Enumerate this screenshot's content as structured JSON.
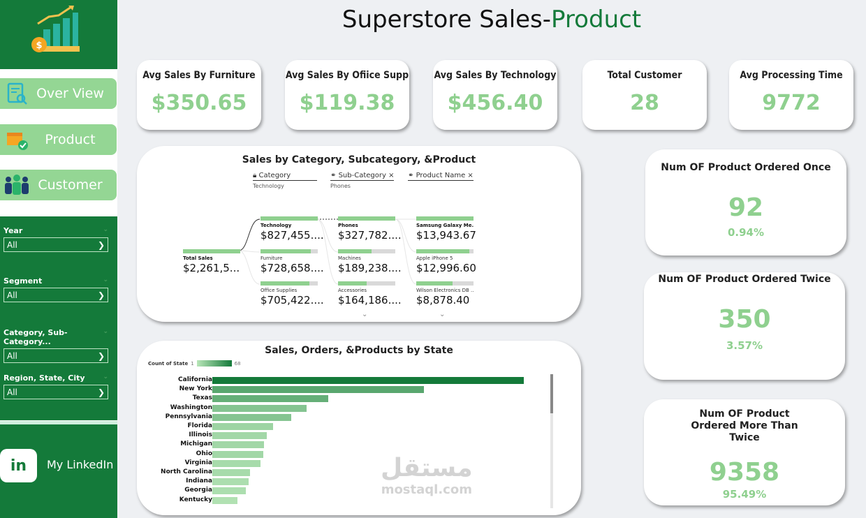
{
  "title": {
    "main": "Superstore Sales-",
    "accent": "Product"
  },
  "nav": [
    {
      "label": "Over View",
      "icon": "report-search-icon"
    },
    {
      "label": "Product",
      "icon": "product-box-icon"
    },
    {
      "label": "Customer",
      "icon": "customers-icon"
    }
  ],
  "filters": [
    {
      "label": "Year",
      "value": "All"
    },
    {
      "label": "Segment",
      "value": "All"
    },
    {
      "label": "Category, Sub-Category...",
      "value": "All"
    },
    {
      "label": "Region, State, City",
      "value": "All"
    }
  ],
  "linkedin": {
    "badge": "in",
    "label": "My LinkedIn"
  },
  "kpis": [
    {
      "title": "Avg Sales By Furniture",
      "value": "$350.65"
    },
    {
      "title": "Avg Sales By Ofiice Supp",
      "value": "$119.38"
    },
    {
      "title": "Avg Sales By Technology",
      "value": "$456.40"
    },
    {
      "title": "Total Customer",
      "value": "28"
    },
    {
      "title": "Avg Processing Time",
      "value": "9772"
    }
  ],
  "tree": {
    "title": "Sales by Category, Subcategory, &Product",
    "headers": [
      {
        "name": "Category",
        "selected": "Technology"
      },
      {
        "name": "Sub-Category",
        "selected": "Phones"
      },
      {
        "name": "Product Name",
        "selected": ""
      }
    ],
    "root": {
      "label": "Total Sales",
      "value": "$2,261,5...",
      "fill": 1.0
    },
    "levels": [
      [
        {
          "label": "Technology",
          "value": "$827,455....",
          "fill": 1.0
        },
        {
          "label": "Furniture",
          "value": "$728,658....",
          "fill": 0.88
        },
        {
          "label": "Office Supplies",
          "value": "$705,422....",
          "fill": 0.85
        }
      ],
      [
        {
          "label": "Phones",
          "value": "$327,782....",
          "fill": 1.0
        },
        {
          "label": "Machines",
          "value": "$189,238....",
          "fill": 0.58
        },
        {
          "label": "Accessories",
          "value": "$164,186....",
          "fill": 0.5
        }
      ],
      [
        {
          "label": "Samsung Galaxy Me...",
          "value": "$13,943.67",
          "fill": 1.0
        },
        {
          "label": "Apple iPhone 5",
          "value": "$12,996.60",
          "fill": 0.93
        },
        {
          "label": "Wilson Electronics DB ...",
          "value": "$8,878.40",
          "fill": 0.64
        }
      ]
    ]
  },
  "ratios": [
    {
      "title": "Num OF Product Ordered Once",
      "value": "92",
      "pct": "0.94%"
    },
    {
      "title": "Num OF Product Ordered Twice",
      "value": "350",
      "pct": "3.57%"
    },
    {
      "title": "Num OF Product Ordered More Than Twice",
      "value": "9358",
      "pct": "95.49%"
    }
  ],
  "watermark": {
    "arabic": "مستقل",
    "latin": "mostaql.com"
  },
  "chart_data": {
    "type": "bar",
    "orientation": "horizontal",
    "title": "Sales, Orders, &Products by State",
    "legend": {
      "title": "Count of State",
      "min": "1",
      "max": "68",
      "colors": [
        "#b8e6b8",
        "#147a3a"
      ]
    },
    "categories": [
      "California",
      "New York",
      "Texas",
      "Washington",
      "Pennsylvania",
      "Florida",
      "Illinois",
      "Michigan",
      "Ohio",
      "Virginia",
      "North Carolina",
      "Indiana",
      "Georgia",
      "Kentucky"
    ],
    "values": [
      457688,
      310876,
      170188,
      138641,
      116512,
      89474,
      80166,
      76270,
      75131,
      70637,
      55603,
      53555,
      49096,
      36592
    ],
    "color_values": [
      68,
      40,
      35,
      22,
      22,
      12,
      10,
      10,
      10,
      8,
      8,
      6,
      6,
      4
    ],
    "xlim": [
      0,
      460000
    ]
  }
}
